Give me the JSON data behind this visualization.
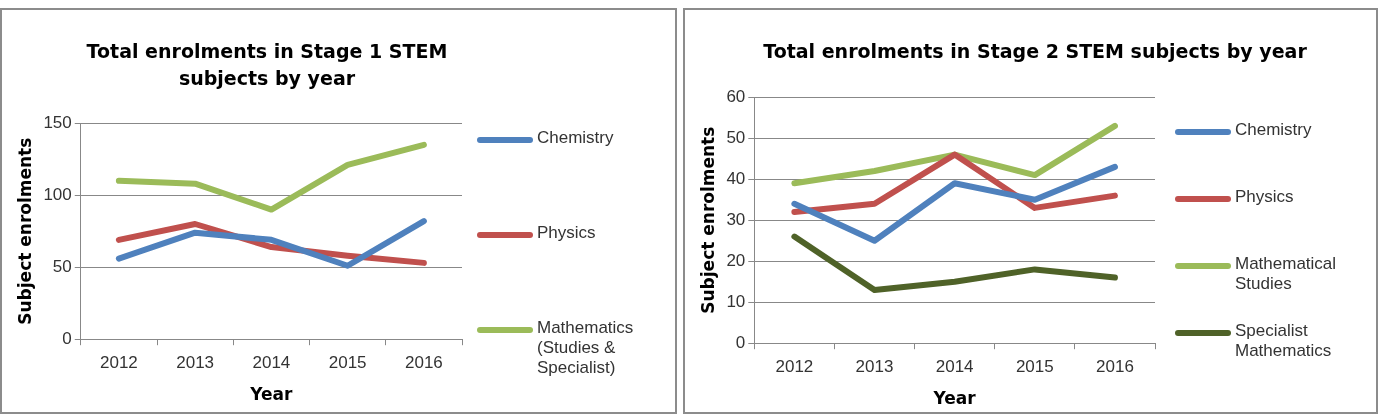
{
  "chart_data": [
    {
      "type": "line",
      "title": "Total enrolments in Stage 1 STEM subjects by year",
      "xlabel": "Year",
      "ylabel": "Subject enrolments",
      "categories": [
        "2012",
        "2013",
        "2014",
        "2015",
        "2016"
      ],
      "series": [
        {
          "name": "Chemistry",
          "color": "#4f81bd",
          "values": [
            56,
            74,
            69,
            51,
            82
          ]
        },
        {
          "name": "Physics",
          "color": "#c0504d",
          "values": [
            69,
            80,
            64,
            58,
            53
          ]
        },
        {
          "name": "Mathematics (Studies & Specialist)",
          "color": "#9bbb59",
          "values": [
            110,
            108,
            90,
            121,
            135
          ]
        }
      ],
      "ylim": [
        0,
        150
      ],
      "yticks": [
        0,
        50,
        100,
        150
      ],
      "grid": "y",
      "legend": "right"
    },
    {
      "type": "line",
      "title": "Total enrolments in Stage 2 STEM subjects by year",
      "xlabel": "Year",
      "ylabel": "Subject enrolments",
      "categories": [
        "2012",
        "2013",
        "2014",
        "2015",
        "2016"
      ],
      "series": [
        {
          "name": "Chemistry",
          "color": "#4f81bd",
          "values": [
            34,
            25,
            39,
            35,
            43
          ]
        },
        {
          "name": "Physics",
          "color": "#c0504d",
          "values": [
            32,
            34,
            46,
            33,
            36
          ]
        },
        {
          "name": "Mathematical Studies",
          "color": "#9bbb59",
          "values": [
            39,
            42,
            46,
            41,
            53
          ]
        },
        {
          "name": "Specialist Mathematics",
          "color": "#4f6228",
          "values": [
            26,
            13,
            15,
            18,
            16
          ]
        }
      ],
      "ylim": [
        0,
        60
      ],
      "yticks": [
        0,
        10,
        20,
        30,
        40,
        50,
        60
      ],
      "grid": "y",
      "legend": "right"
    }
  ]
}
